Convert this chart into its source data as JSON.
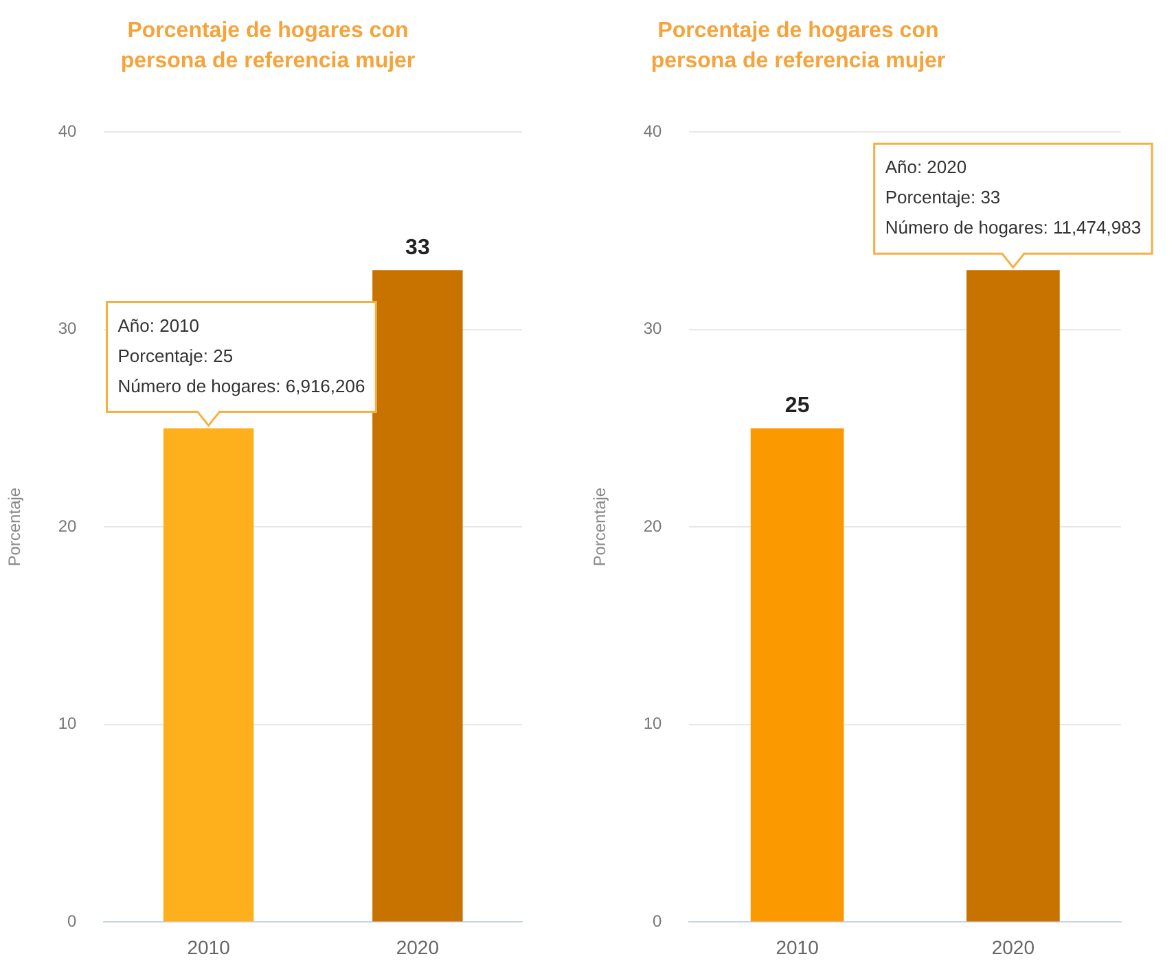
{
  "chart_data": [
    {
      "type": "bar",
      "title": "Porcentaje de hogares con persona de referencia mujer",
      "ylabel": "Porcentaje",
      "categories": [
        "2010",
        "2020"
      ],
      "values": [
        25,
        33
      ],
      "colors": [
        "#fdb01b",
        "#c87200"
      ],
      "value_labels": [
        null,
        "33"
      ],
      "ylim": [
        0,
        40
      ],
      "yticks": [
        0,
        10,
        20,
        30,
        40
      ],
      "grid": "y",
      "annotations": [
        {
          "text": "Año: 2010\nPorcentaje: 25\nNúmero de hogares: 6,916,206",
          "x": "2010",
          "y": 25
        }
      ]
    },
    {
      "type": "bar",
      "title": "Porcentaje de hogares con persona de referencia mujer",
      "ylabel": "Porcentaje",
      "categories": [
        "2010",
        "2020"
      ],
      "values": [
        25,
        33
      ],
      "colors": [
        "#fb9a00",
        "#c87200"
      ],
      "value_labels": [
        "25",
        null
      ],
      "ylim": [
        0,
        40
      ],
      "yticks": [
        0,
        10,
        20,
        30,
        40
      ],
      "grid": "y",
      "annotations": [
        {
          "text": "Año: 2020\nPorcentaje: 33\nNúmero de hogares: 11,474,983",
          "x": "2020",
          "y": 33
        }
      ]
    }
  ]
}
